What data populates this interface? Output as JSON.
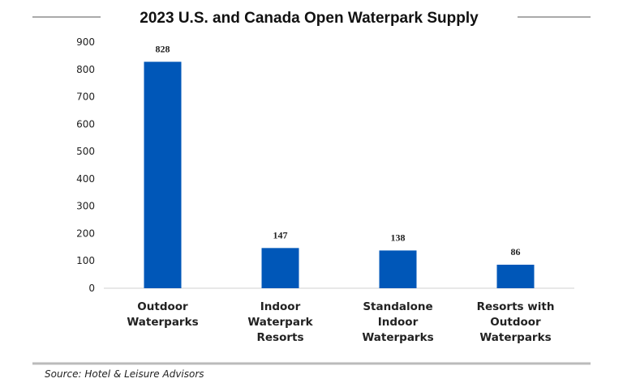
{
  "chart_data": {
    "type": "bar",
    "title": "2023 U.S. and Canada Open Waterpark Supply",
    "categories": [
      [
        "Outdoor",
        "Waterparks"
      ],
      [
        "Indoor",
        "Waterpark",
        "Resorts"
      ],
      [
        "Standalone",
        "Indoor",
        "Waterparks"
      ],
      [
        "Resorts with",
        "Outdoor",
        "Waterparks"
      ]
    ],
    "values": [
      828,
      147,
      138,
      86
    ],
    "data_labels": [
      "828",
      "147",
      "138",
      "86"
    ],
    "yticks": [
      0,
      100,
      200,
      300,
      400,
      500,
      600,
      700,
      800,
      900
    ],
    "ylim": [
      0,
      900
    ],
    "grid": false,
    "bar_color": "#0057b8",
    "source": "Source: Hotel & Leisure Advisors"
  }
}
